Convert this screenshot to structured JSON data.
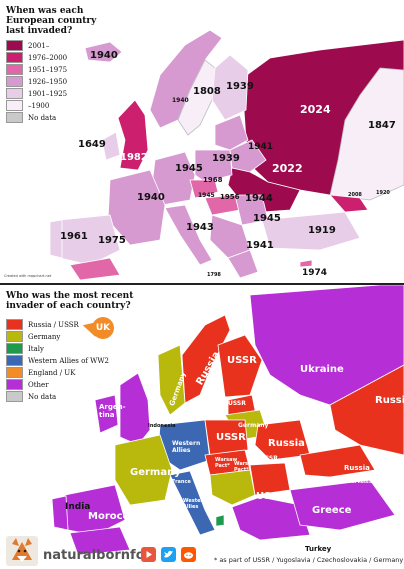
{
  "map1": {
    "title": "When was each\nEuropean country\nlast invaded?",
    "legend": [
      {
        "label": "2001–",
        "color": "#9e0a4e"
      },
      {
        "label": "1976–2000",
        "color": "#cc1f6e"
      },
      {
        "label": "1951–1975",
        "color": "#e267a8"
      },
      {
        "label": "1926–1950",
        "color": "#d69ad0"
      },
      {
        "label": "1901–1925",
        "color": "#e8cde8"
      },
      {
        "label": "–1900",
        "color": "#f7eef7"
      },
      {
        "label": "No data",
        "color": "#c9c9c9"
      }
    ],
    "labels": {
      "l1940a": "1940",
      "l1808": "1808",
      "l1939a": "1939",
      "l1940b": "1940",
      "l2024": "2024",
      "l1847": "1847",
      "l1649": "1649",
      "l1982": "1982",
      "l1945a": "1945",
      "l1939b": "1939",
      "l1941a": "1941",
      "l2022": "2022",
      "l1940c": "1940",
      "l1968": "1968",
      "l1944": "1944",
      "l1956": "1956",
      "l1945b": "1945",
      "l1943": "1943",
      "l1945c": "1945",
      "l1961": "1961",
      "l1975": "1975",
      "l1941b": "1941",
      "l1919": "1919",
      "l1974": "1974",
      "l1798": "1798",
      "l2008": "2008",
      "l1920": "1920"
    },
    "credit": "Created with mapchart.net"
  },
  "map2": {
    "title": "Who was the most recent\ninvader of each country?",
    "legend": [
      {
        "label": "Russia / USSR",
        "color": "#e8321e"
      },
      {
        "label": "Germany",
        "color": "#b8b80d"
      },
      {
        "label": "Italy",
        "color": "#1f9a4c"
      },
      {
        "label": "Western Allies of WW2",
        "color": "#3b67b3"
      },
      {
        "label": "England / UK",
        "color": "#f28c28"
      },
      {
        "label": "Other",
        "color": "#b52ed6"
      },
      {
        "label": "No data",
        "color": "#c9c9c9"
      }
    ],
    "labels": {
      "uk_badge": "UK",
      "russia1": "Russia",
      "ussr1": "USSR",
      "ukraine": "Ukraine",
      "russia2": "Russia",
      "germany1": "Germany",
      "argentina": "Argen-\ntina",
      "indonesia": "Indonesia",
      "western_allies1": "Western\nAllies",
      "ussr2": "USSR",
      "russia3": "Russia",
      "warsaw1": "Warsaw\nPact*",
      "warsaw2": "Warsaw\nPact*",
      "germany2": "Germany",
      "france": "France",
      "ussr3": "USSR",
      "ussr4": "USSR",
      "russia4": "Russia",
      "soviet1": "Soviet Russia",
      "india": "India",
      "morocco": "Morocco",
      "western_allies2": "Western\nAllies",
      "greece": "Greece",
      "turkey": "Turkey",
      "germany3": "Germany",
      "ussr_small": "USSR"
    }
  },
  "footer": {
    "brand": "naturalbornfox",
    "note": "* as part of USSR / Yugoslavia / Czechoslovakia / Germany",
    "icons": [
      "youtube-icon",
      "twitter-icon",
      "reddit-icon"
    ]
  }
}
